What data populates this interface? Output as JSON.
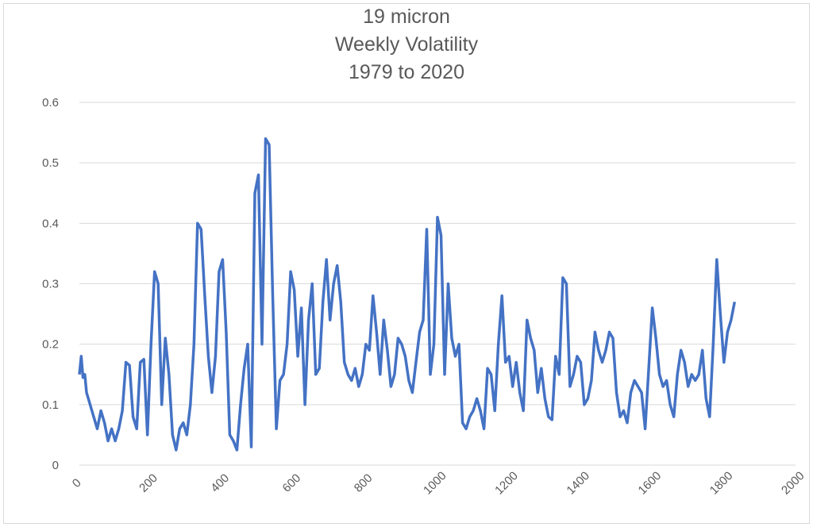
{
  "chart_data": {
    "type": "line",
    "title": "19 micron",
    "subtitle": "Weekly Volatility",
    "subtitle2": "1979 to 2020",
    "xlabel": "",
    "ylabel": "",
    "xlim": [
      0,
      2000
    ],
    "ylim": [
      0,
      0.6
    ],
    "x_ticks": [
      "0",
      "200",
      "400",
      "600",
      "800",
      "1000",
      "1200",
      "1400",
      "1600",
      "1800",
      "2000"
    ],
    "y_ticks": [
      "0",
      "0.1",
      "0.2",
      "0.3",
      "0.4",
      "0.5",
      "0.6"
    ],
    "grid": true,
    "series": [
      {
        "color": "#4472c4",
        "x": [
          0,
          5,
          10,
          15,
          20,
          25,
          30,
          40,
          50,
          60,
          70,
          80,
          90,
          100,
          110,
          120,
          130,
          140,
          150,
          160,
          170,
          180,
          190,
          200,
          210,
          220,
          230,
          240,
          250,
          260,
          270,
          280,
          290,
          300,
          310,
          320,
          330,
          340,
          350,
          360,
          370,
          380,
          390,
          400,
          410,
          420,
          430,
          440,
          450,
          460,
          470,
          480,
          490,
          500,
          510,
          520,
          530,
          540,
          550,
          560,
          570,
          580,
          590,
          600,
          610,
          620,
          630,
          640,
          650,
          660,
          670,
          680,
          690,
          700,
          710,
          720,
          730,
          740,
          750,
          760,
          770,
          780,
          790,
          800,
          810,
          820,
          830,
          840,
          850,
          860,
          870,
          880,
          890,
          900,
          910,
          920,
          930,
          940,
          950,
          960,
          970,
          980,
          990,
          1000,
          1010,
          1020,
          1030,
          1040,
          1050,
          1060,
          1070,
          1080,
          1090,
          1100,
          1110,
          1120,
          1130,
          1140,
          1150,
          1160,
          1170,
          1180,
          1190,
          1200,
          1210,
          1220,
          1230,
          1240,
          1250,
          1260,
          1270,
          1280,
          1290,
          1300,
          1310,
          1320,
          1330,
          1340,
          1350,
          1360,
          1370,
          1380,
          1390,
          1400,
          1410,
          1420,
          1430,
          1440,
          1450,
          1460,
          1470,
          1480,
          1490,
          1500,
          1510,
          1520,
          1530,
          1540,
          1550,
          1560,
          1570,
          1580,
          1590,
          1600,
          1610,
          1620,
          1630,
          1640,
          1650,
          1660,
          1670,
          1680,
          1690,
          1700,
          1710,
          1720,
          1730,
          1740,
          1750,
          1760,
          1770,
          1780,
          1790,
          1800,
          1810,
          1820,
          1830
        ],
        "values": [
          0.15,
          0.18,
          0.145,
          0.15,
          0.12,
          0.11,
          0.1,
          0.08,
          0.06,
          0.09,
          0.07,
          0.04,
          0.06,
          0.04,
          0.06,
          0.09,
          0.17,
          0.165,
          0.08,
          0.06,
          0.17,
          0.175,
          0.05,
          0.2,
          0.32,
          0.3,
          0.1,
          0.21,
          0.15,
          0.05,
          0.025,
          0.06,
          0.07,
          0.05,
          0.1,
          0.2,
          0.4,
          0.39,
          0.28,
          0.18,
          0.12,
          0.18,
          0.32,
          0.34,
          0.22,
          0.05,
          0.04,
          0.025,
          0.1,
          0.16,
          0.2,
          0.03,
          0.45,
          0.48,
          0.2,
          0.54,
          0.53,
          0.28,
          0.06,
          0.14,
          0.15,
          0.2,
          0.32,
          0.29,
          0.18,
          0.26,
          0.1,
          0.24,
          0.3,
          0.15,
          0.16,
          0.27,
          0.34,
          0.24,
          0.3,
          0.33,
          0.27,
          0.17,
          0.15,
          0.14,
          0.16,
          0.13,
          0.15,
          0.2,
          0.19,
          0.28,
          0.22,
          0.15,
          0.24,
          0.19,
          0.13,
          0.15,
          0.21,
          0.2,
          0.18,
          0.14,
          0.12,
          0.17,
          0.22,
          0.24,
          0.39,
          0.15,
          0.2,
          0.41,
          0.38,
          0.15,
          0.3,
          0.21,
          0.18,
          0.2,
          0.07,
          0.06,
          0.08,
          0.09,
          0.11,
          0.09,
          0.06,
          0.16,
          0.15,
          0.09,
          0.2,
          0.28,
          0.17,
          0.18,
          0.13,
          0.17,
          0.12,
          0.09,
          0.24,
          0.21,
          0.19,
          0.12,
          0.16,
          0.11,
          0.08,
          0.075,
          0.18,
          0.15,
          0.31,
          0.3,
          0.13,
          0.15,
          0.18,
          0.17,
          0.1,
          0.11,
          0.14,
          0.22,
          0.19,
          0.17,
          0.19,
          0.22,
          0.21,
          0.12,
          0.08,
          0.09,
          0.07,
          0.12,
          0.14,
          0.13,
          0.12,
          0.06,
          0.16,
          0.26,
          0.21,
          0.15,
          0.13,
          0.14,
          0.1,
          0.08,
          0.15,
          0.19,
          0.17,
          0.13,
          0.15,
          0.14,
          0.15,
          0.19,
          0.11,
          0.08,
          0.2,
          0.34,
          0.25,
          0.17,
          0.22,
          0.24,
          0.27
        ]
      }
    ]
  }
}
